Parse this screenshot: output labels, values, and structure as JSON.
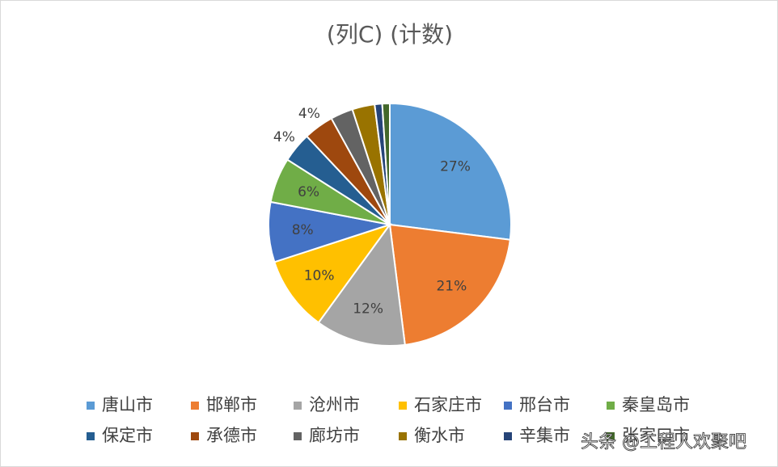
{
  "chart_data": {
    "type": "pie",
    "title": "(列C) (计数)",
    "categories": [
      "唐山市",
      "邯郸市",
      "沧州市",
      "石家庄市",
      "邢台市",
      "秦皇岛市",
      "保定市",
      "承德市",
      "廊坊市",
      "衡水市",
      "辛集市",
      "张家口市"
    ],
    "values": [
      27,
      21,
      12,
      10,
      8,
      6,
      4,
      4,
      3,
      3,
      1,
      1
    ],
    "value_labels": [
      "27%",
      "21%",
      "12%",
      "10%",
      "8%",
      "6%",
      "4%",
      "4%",
      null,
      null,
      null,
      null
    ],
    "colors": [
      "#5b9bd5",
      "#ed7d31",
      "#a5a5a5",
      "#ffc000",
      "#4472c4",
      "#70ad47",
      "#255e91",
      "#9e480e",
      "#636363",
      "#997300",
      "#264478",
      "#43682b"
    ],
    "legend": "bottom"
  },
  "watermark": "头条 @工程人欢聚吧"
}
